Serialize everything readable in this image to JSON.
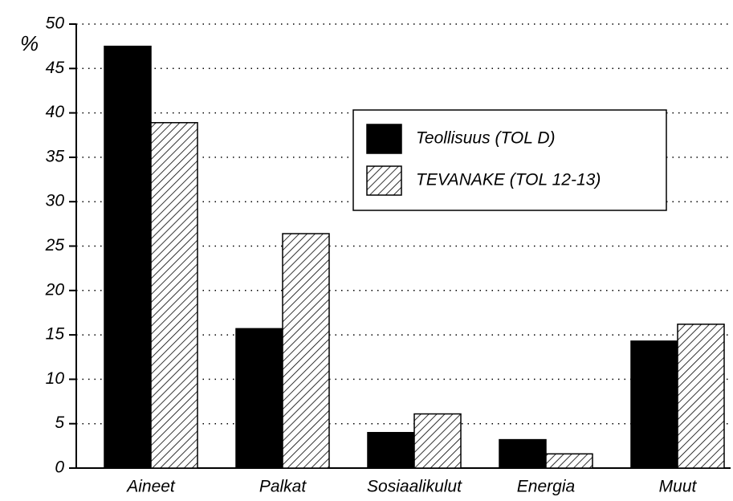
{
  "chart_data": {
    "type": "bar",
    "ylabel": "%",
    "categories": [
      "Aineet",
      "Palkat",
      "Sosiaalikulut",
      "Energia",
      "Muut"
    ],
    "series": [
      {
        "name": "Teollisuus (TOL D)",
        "color": "#000000",
        "hatch": false,
        "values": [
          47.5,
          15.7,
          4.0,
          3.2,
          14.3
        ]
      },
      {
        "name": "TEVANAKE (TOL 12-13)",
        "color": "#000000",
        "hatch": true,
        "values": [
          38.9,
          26.4,
          6.1,
          1.6,
          16.2
        ]
      }
    ],
    "ylim": [
      0,
      50
    ],
    "yticks": [
      0,
      5,
      10,
      15,
      20,
      25,
      30,
      35,
      40,
      45,
      50
    ],
    "grid": true,
    "legend": "upper right"
  }
}
